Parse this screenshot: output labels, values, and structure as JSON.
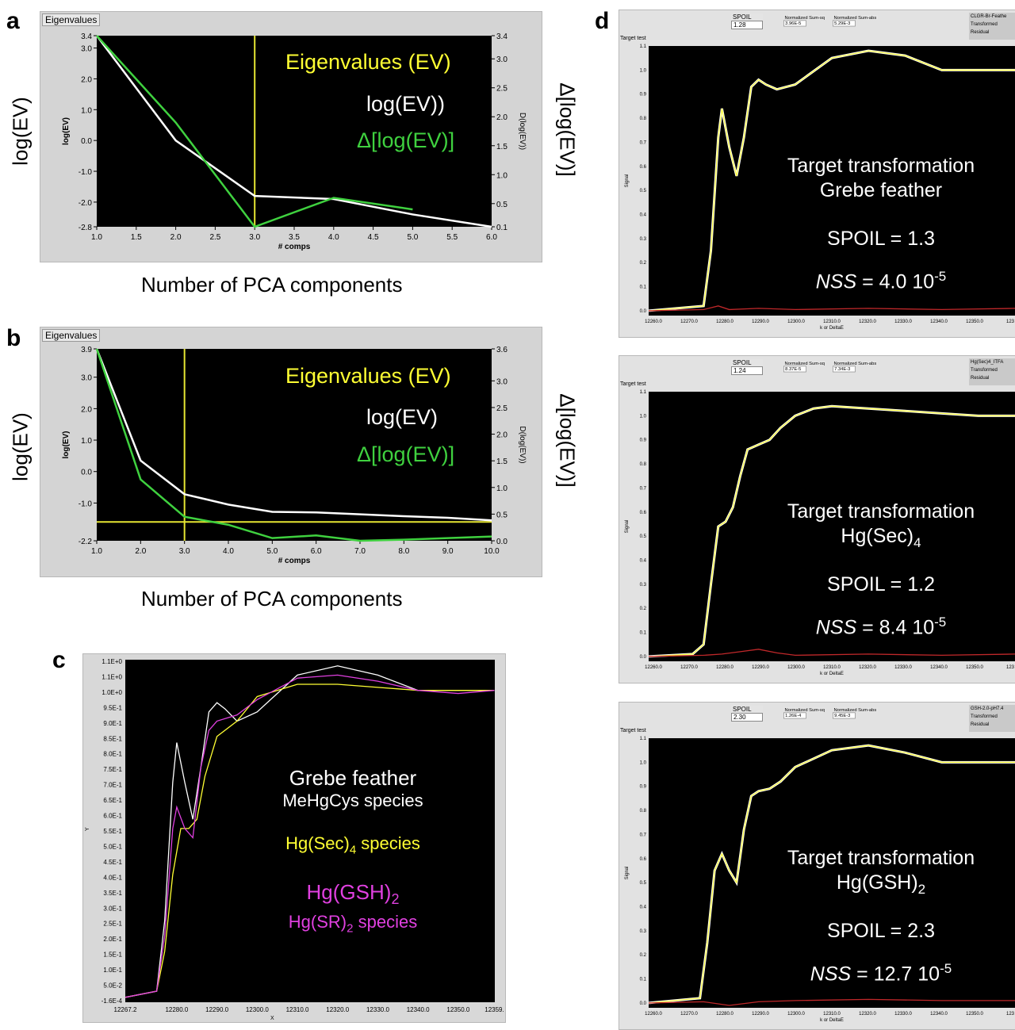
{
  "panels": {
    "a": {
      "letter": "a",
      "frame_title": "Eigenvalues",
      "side_left": "log(EV)",
      "side_right": "Δ[log(EV)]",
      "caption": "Number of PCA components",
      "legend": [
        "Eigenvalues (EV)",
        "log(EV))",
        "Δ[log(EV)]"
      ]
    },
    "b": {
      "letter": "b",
      "frame_title": "Eigenvalues",
      "side_left": "log(EV)",
      "side_right": "Δ[log(EV)]",
      "caption": "Number of PCA components",
      "legend": [
        "Eigenvalues (EV)",
        "log(EV)",
        "Δ[log(EV)]"
      ]
    },
    "c": {
      "letter": "c",
      "legend": {
        "white_1": "Grebe feather",
        "white_2": "MeHgCys species",
        "yellow": "Hg(Sec)",
        "yellow_sub": "4",
        "yellow_tail": " species",
        "magenta_1": "Hg(GSH)",
        "magenta_1_sub": "2",
        "magenta_2": "Hg(SR)",
        "magenta_2_sub": "2",
        "magenta_2_tail": " species"
      }
    },
    "d": {
      "letter": "d",
      "subplots": [
        {
          "spoil_label": "SPOIL",
          "spoil_value": "1.28",
          "nss_label": "Normalized Sum-sq",
          "nss_value": "3.96E-5",
          "nsa_label": "Normalized Sum-abs",
          "nsa_value": "5.29E-3",
          "legend_items": [
            "CLGR-Br-Feathe",
            "Transformed",
            "Residual"
          ],
          "y_title": "Signal",
          "target_label": "Target test",
          "x_title": "k or DeltaE",
          "text_1": "Target transformation",
          "text_2": "Grebe feather",
          "text_2_sub": "",
          "spoil_text": "SPOIL = 1.3",
          "nss_prefix": "NSS",
          "nss_text": " = 4.0 10",
          "nss_exp": "-5"
        },
        {
          "spoil_label": "SPOIL",
          "spoil_value": "1.24",
          "nss_label": "Normalized Sum-sq",
          "nss_value": "8.37E-5",
          "nsa_label": "Normalized Sum-abs",
          "nsa_value": "7.34E-3",
          "legend_items": [
            "Hg(Sec)4_ITFA",
            "Transformed",
            "Residual"
          ],
          "y_title": "Signal",
          "target_label": "Target test",
          "x_title": "k or DeltaE",
          "text_1": "Target transformation",
          "text_2": "Hg(Sec)",
          "text_2_sub": "4",
          "spoil_text": "SPOIL = 1.2",
          "nss_prefix": "NSS",
          "nss_text": " = 8.4 10",
          "nss_exp": "-5"
        },
        {
          "spoil_label": "SPOIL",
          "spoil_value": "2.30",
          "nss_label": "Normalized Sum-sq",
          "nss_value": "1.26E-4",
          "nsa_label": "Normalized Sum-abs",
          "nsa_value": "9.45E-3",
          "legend_items": [
            "GSH-2.0-pH7.4",
            "Transformed",
            "Residual"
          ],
          "y_title": "Signal",
          "target_label": "Target test",
          "x_title": "k or DeltaE",
          "text_1": "Target transformation",
          "text_2": "Hg(GSH)",
          "text_2_sub": "2",
          "spoil_text": "SPOIL = 2.3",
          "nss_prefix": "NSS",
          "nss_text": " = 12.7 10",
          "nss_exp": "-5"
        }
      ]
    }
  },
  "chart_data": [
    {
      "id": "a",
      "type": "line",
      "xlabel": "# comps",
      "ylabel": "log(EV)",
      "y2label": "D(log(EV))",
      "xlim": [
        1.0,
        6.0
      ],
      "ylim": [
        -2.8,
        3.4
      ],
      "y2lim": [
        0.1,
        3.4
      ],
      "xticks": [
        "1.0",
        "1.5",
        "2.0",
        "2.5",
        "3.0",
        "3.5",
        "4.0",
        "4.5",
        "5.0",
        "5.5",
        "6.0"
      ],
      "yticks": [
        "3.4",
        "3.0",
        "2.0",
        "1.0",
        "0.0",
        "-1.0",
        "-2.0",
        "-2.8"
      ],
      "y2ticks": [
        "3.4",
        "3.0",
        "2.5",
        "2.0",
        "1.5",
        "1.0",
        "0.5",
        "0.1"
      ],
      "cursor_x": 3.0,
      "series": [
        {
          "color": "#ffffff",
          "axis": "y",
          "x": [
            1,
            2,
            3,
            4,
            5,
            6
          ],
          "values": [
            3.4,
            0.0,
            -1.8,
            -1.9,
            -2.4,
            -2.8
          ]
        },
        {
          "color": "#3fd13f",
          "axis": "y2",
          "x": [
            1,
            2,
            3,
            4,
            5
          ],
          "values": [
            3.4,
            1.9,
            0.1,
            0.6,
            0.4
          ]
        }
      ]
    },
    {
      "id": "b",
      "type": "line",
      "xlabel": "# comps",
      "ylabel": "log(EV)",
      "y2label": "D(log(EV))",
      "xlim": [
        1.0,
        10.0
      ],
      "ylim": [
        -2.2,
        3.9
      ],
      "y2lim": [
        0.0,
        3.6
      ],
      "xticks": [
        "1.0",
        "2.0",
        "3.0",
        "4.0",
        "5.0",
        "6.0",
        "7.0",
        "8.0",
        "9.0",
        "10.0"
      ],
      "yticks": [
        "3.9",
        "3.0",
        "2.0",
        "1.0",
        "0.0",
        "-1.0",
        "-2.2"
      ],
      "y2ticks": [
        "3.6",
        "3.0",
        "2.5",
        "2.0",
        "1.5",
        "1.0",
        "0.5",
        "0.0"
      ],
      "cursor_x": 3.0,
      "cursor_y": -1.6,
      "series": [
        {
          "color": "#ffffff",
          "axis": "y",
          "x": [
            1,
            2,
            3,
            4,
            5,
            6,
            7,
            8,
            9,
            10
          ],
          "values": [
            3.9,
            0.35,
            -0.72,
            -1.05,
            -1.28,
            -1.3,
            -1.36,
            -1.42,
            -1.47,
            -1.55
          ]
        },
        {
          "color": "#3fd13f",
          "axis": "y2",
          "x": [
            1,
            2,
            3,
            4,
            5,
            6,
            7,
            8,
            9,
            10
          ],
          "values": [
            3.6,
            1.15,
            0.45,
            0.3,
            0.05,
            0.1,
            0.0,
            0.02,
            0.05,
            0.08
          ]
        }
      ]
    },
    {
      "id": "c",
      "type": "line",
      "xlabel": "X",
      "ylabel": "Y",
      "xlim": [
        12267.2,
        12359.1
      ],
      "ylim": [
        -0.016,
        1.1
      ],
      "xticks": [
        "12267.2",
        "12280.0",
        "12290.0",
        "12300.0",
        "12310.0",
        "12320.0",
        "12330.0",
        "12340.0",
        "12350.0",
        "12359."
      ],
      "yticks": [
        "1.1E+0",
        "1.1E+0",
        "1.0E+0",
        "9.5E-1",
        "9.0E-1",
        "8.5E-1",
        "8.0E-1",
        "7.5E-1",
        "7.0E-1",
        "6.5E-1",
        "6.0E-1",
        "5.5E-1",
        "5.0E-1",
        "4.5E-1",
        "4.0E-1",
        "3.5E-1",
        "3.0E-1",
        "2.5E-1",
        "2.0E-1",
        "1.5E-1",
        "1.0E-1",
        "5.0E-2",
        "-1.6E-4"
      ],
      "series": [
        {
          "color": "#ffffff",
          "x": [
            12267.2,
            12275,
            12277,
            12279,
            12280,
            12282,
            12284,
            12286,
            12288,
            12290,
            12292,
            12295,
            12300,
            12310,
            12320,
            12330,
            12340,
            12350,
            12359
          ],
          "values": [
            0.0,
            0.02,
            0.25,
            0.7,
            0.83,
            0.7,
            0.58,
            0.75,
            0.93,
            0.96,
            0.94,
            0.9,
            0.93,
            1.05,
            1.08,
            1.05,
            1.0,
            1.0,
            1.0
          ]
        },
        {
          "color": "#ffff33",
          "x": [
            12267.2,
            12275,
            12277,
            12279,
            12281,
            12283,
            12285,
            12287,
            12290,
            12295,
            12300,
            12305,
            12310,
            12320,
            12330,
            12340,
            12350,
            12359
          ],
          "values": [
            0.0,
            0.02,
            0.15,
            0.4,
            0.55,
            0.55,
            0.58,
            0.72,
            0.85,
            0.9,
            0.98,
            1.0,
            1.02,
            1.02,
            1.01,
            1.0,
            1.0,
            1.0
          ]
        },
        {
          "color": "#e040e0",
          "x": [
            12267.2,
            12275,
            12277,
            12279,
            12280,
            12282,
            12284,
            12286,
            12288,
            12290,
            12295,
            12300,
            12310,
            12320,
            12330,
            12340,
            12350,
            12359
          ],
          "values": [
            0.0,
            0.02,
            0.2,
            0.55,
            0.62,
            0.55,
            0.52,
            0.75,
            0.87,
            0.9,
            0.92,
            0.97,
            1.04,
            1.05,
            1.03,
            1.0,
            0.99,
            1.0
          ]
        }
      ]
    },
    {
      "id": "d1",
      "type": "line",
      "xlabel": "k or DeltaE",
      "ylabel": "Signal",
      "xlim": [
        12260.0,
        12360.0
      ],
      "ylim": [
        -0.02,
        1.1
      ],
      "xticks": [
        "12260.0",
        "12270.0",
        "12280.0",
        "12290.0",
        "12300.0",
        "12310.0",
        "12320.0",
        "12330.0",
        "12340.0",
        "12350.0",
        "123"
      ],
      "yticks": [
        "1.1",
        "1.0",
        "0.9",
        "0.8",
        "0.7",
        "0.6",
        "0.5",
        "0.4",
        "0.3",
        "0.2",
        "0.1",
        "0.0"
      ],
      "series": [
        {
          "color": "#ffffff",
          "x": [
            12260,
            12275,
            12277,
            12279,
            12280,
            12282,
            12284,
            12286,
            12288,
            12290,
            12292,
            12295,
            12300,
            12310,
            12320,
            12330,
            12340,
            12350,
            12360
          ],
          "values": [
            0.0,
            0.02,
            0.25,
            0.72,
            0.84,
            0.68,
            0.56,
            0.72,
            0.93,
            0.96,
            0.94,
            0.92,
            0.94,
            1.05,
            1.08,
            1.06,
            1.0,
            1.0,
            1.0
          ]
        },
        {
          "color": "#ffff33",
          "x": [
            12260,
            12275,
            12277,
            12279,
            12280,
            12282,
            12284,
            12286,
            12288,
            12290,
            12292,
            12295,
            12300,
            12310,
            12320,
            12330,
            12340,
            12350,
            12360
          ],
          "values": [
            0.0,
            0.02,
            0.25,
            0.72,
            0.84,
            0.68,
            0.56,
            0.72,
            0.93,
            0.96,
            0.94,
            0.92,
            0.94,
            1.05,
            1.08,
            1.06,
            1.0,
            1.0,
            1.0
          ]
        },
        {
          "color": "#c0282a",
          "x": [
            12260,
            12275,
            12279,
            12282,
            12290,
            12300,
            12320,
            12340,
            12360
          ],
          "values": [
            0.0,
            0.005,
            0.02,
            0.005,
            0.01,
            0.005,
            0.01,
            0.005,
            0.01
          ]
        }
      ]
    },
    {
      "id": "d2",
      "type": "line",
      "xlabel": "k or DeltaE",
      "ylabel": "Signal",
      "xlim": [
        12260.0,
        12360.0
      ],
      "ylim": [
        -0.02,
        1.1
      ],
      "xticks": [
        "12260.0",
        "12270.0",
        "12280.0",
        "12290.0",
        "12300.0",
        "12310.0",
        "12320.0",
        "12330.0",
        "12340.0",
        "12350.0",
        "123"
      ],
      "yticks": [
        "1.1",
        "1.0",
        "0.9",
        "0.8",
        "0.7",
        "0.6",
        "0.5",
        "0.4",
        "0.3",
        "0.2",
        "0.1",
        "0.0"
      ],
      "series": [
        {
          "color": "#ffffff",
          "x": [
            12260,
            12272,
            12275,
            12277,
            12279,
            12281,
            12283,
            12285,
            12287,
            12290,
            12293,
            12296,
            12300,
            12305,
            12310,
            12320,
            12330,
            12340,
            12350,
            12360
          ],
          "values": [
            0.0,
            0.01,
            0.05,
            0.3,
            0.54,
            0.56,
            0.62,
            0.75,
            0.86,
            0.88,
            0.9,
            0.95,
            1.0,
            1.03,
            1.04,
            1.03,
            1.02,
            1.01,
            1.0,
            1.0
          ]
        },
        {
          "color": "#ffff33",
          "x": [
            12260,
            12272,
            12275,
            12277,
            12279,
            12281,
            12283,
            12285,
            12287,
            12290,
            12293,
            12296,
            12300,
            12305,
            12310,
            12320,
            12330,
            12340,
            12350,
            12360
          ],
          "values": [
            0.0,
            0.01,
            0.05,
            0.3,
            0.54,
            0.56,
            0.62,
            0.75,
            0.86,
            0.88,
            0.9,
            0.95,
            1.0,
            1.03,
            1.04,
            1.03,
            1.02,
            1.01,
            1.0,
            1.0
          ]
        },
        {
          "color": "#c0282a",
          "x": [
            12260,
            12275,
            12280,
            12285,
            12290,
            12295,
            12300,
            12320,
            12340,
            12360
          ],
          "values": [
            0.0,
            0.005,
            0.01,
            0.02,
            0.03,
            0.015,
            0.005,
            0.01,
            0.005,
            0.01
          ]
        }
      ]
    },
    {
      "id": "d3",
      "type": "line",
      "xlabel": "k or DeltaE",
      "ylabel": "Signal",
      "xlim": [
        12260.0,
        12360.0
      ],
      "ylim": [
        -0.02,
        1.1
      ],
      "xticks": [
        "12260.0",
        "12270.0",
        "12280.0",
        "12290.0",
        "12300.0",
        "12310.0",
        "12320.0",
        "12330.0",
        "12340.0",
        "12350.0",
        "123"
      ],
      "yticks": [
        "1.1",
        "1.0",
        "0.9",
        "0.8",
        "0.7",
        "0.6",
        "0.5",
        "0.4",
        "0.3",
        "0.2",
        "0.1",
        "0.0"
      ],
      "series": [
        {
          "color": "#ffffff",
          "x": [
            12260,
            12274,
            12276,
            12278,
            12280,
            12282,
            12284,
            12286,
            12288,
            12290,
            12293,
            12296,
            12300,
            12310,
            12320,
            12330,
            12340,
            12350,
            12360
          ],
          "values": [
            0.0,
            0.02,
            0.25,
            0.55,
            0.62,
            0.55,
            0.5,
            0.72,
            0.86,
            0.88,
            0.89,
            0.92,
            0.98,
            1.05,
            1.07,
            1.04,
            1.0,
            1.0,
            1.0
          ]
        },
        {
          "color": "#ffff33",
          "x": [
            12260,
            12274,
            12276,
            12278,
            12280,
            12282,
            12284,
            12286,
            12288,
            12290,
            12293,
            12296,
            12300,
            12310,
            12320,
            12330,
            12340,
            12350,
            12360
          ],
          "values": [
            0.0,
            0.02,
            0.25,
            0.55,
            0.62,
            0.55,
            0.5,
            0.72,
            0.86,
            0.88,
            0.89,
            0.92,
            0.98,
            1.05,
            1.07,
            1.04,
            1.0,
            1.0,
            1.0
          ]
        },
        {
          "color": "#c0282a",
          "x": [
            12260,
            12275,
            12282,
            12290,
            12300,
            12320,
            12340,
            12360
          ],
          "values": [
            0.0,
            0.005,
            -0.01,
            0.005,
            0.01,
            0.015,
            0.01,
            0.01
          ]
        }
      ]
    }
  ]
}
